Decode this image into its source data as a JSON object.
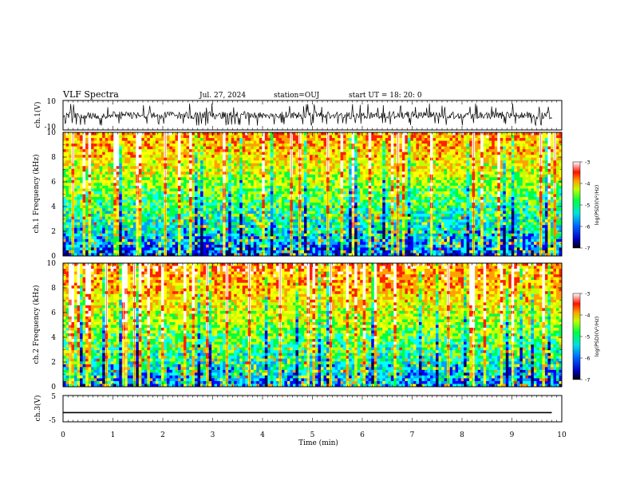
{
  "header": {
    "title": "VLF Spectra",
    "date": "Jul. 27, 2024",
    "station": "station=OUJ",
    "start_time": "start UT = 18: 20: 0"
  },
  "chart_data": [
    {
      "type": "line",
      "panel": "ch1-waveform",
      "ylabel": "ch.1(V)",
      "ylim": [
        -10,
        10
      ],
      "yticks": [
        "10",
        "-10"
      ],
      "xlim": [
        0,
        10
      ],
      "note": "dense noisy waveform, mostly between about -3 and 3 V with frequent spikes to about -7 V"
    },
    {
      "type": "heatmap",
      "panel": "ch1-spectrogram",
      "ylabel": "ch.1 Frequency (kHz)",
      "ylim": [
        0,
        10
      ],
      "yticks": [
        "0",
        "2",
        "4",
        "6",
        "8",
        "10"
      ],
      "xlim": [
        0,
        10
      ],
      "colorbar": {
        "label": "log(PSD)(V²/Hz)",
        "range": [
          -7,
          -3
        ],
        "ticks": [
          "-3",
          "-4",
          "-5",
          "-6",
          "-7"
        ]
      }
    },
    {
      "type": "heatmap",
      "panel": "ch2-spectrogram",
      "ylabel": "ch.2 Frequency (kHz)",
      "ylim": [
        0,
        10
      ],
      "yticks": [
        "0",
        "2",
        "4",
        "6",
        "8",
        "10"
      ],
      "xlim": [
        0,
        10
      ],
      "colorbar": {
        "label": "log(PSD)(V²/Hz)",
        "range": [
          -7,
          -3
        ],
        "ticks": [
          "-3",
          "-4",
          "-5",
          "-6",
          "-7"
        ]
      }
    },
    {
      "type": "line",
      "panel": "ch3-waveform",
      "ylabel": "ch.3(V)",
      "ylim": [
        -5,
        5
      ],
      "yticks": [
        "5",
        "-5"
      ],
      "xlim": [
        0,
        10
      ],
      "x": [
        0,
        9.8
      ],
      "y": [
        -1.5,
        -1.5
      ]
    }
  ],
  "xaxis": {
    "label": "Time (min)",
    "ticks": [
      "0",
      "1",
      "2",
      "3",
      "4",
      "5",
      "6",
      "7",
      "8",
      "9",
      "10"
    ]
  },
  "colors": {
    "colormap": [
      "#000060",
      "#0000ff",
      "#00a0ff",
      "#00ffff",
      "#00ff40",
      "#c0ff00",
      "#ffff00",
      "#ffa000",
      "#ff2000",
      "#ffffff"
    ]
  }
}
